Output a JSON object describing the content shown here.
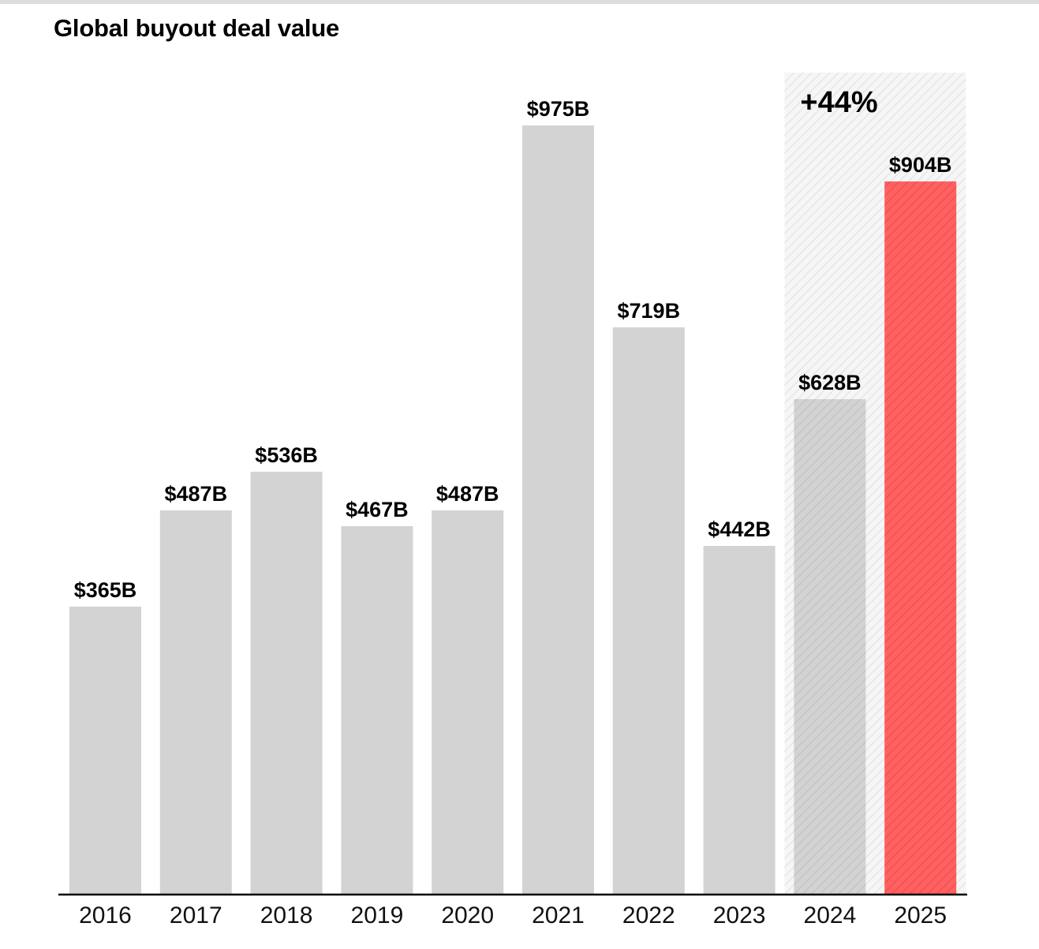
{
  "title": "Global buyout deal value",
  "colors": {
    "bar": "#d3d3d3",
    "bar_hatched": "#cccccc",
    "highlight": "#ff5f5f",
    "axis": "#000000",
    "callout_band": "#f3f3f3"
  },
  "chart_data": {
    "type": "bar",
    "title": "Global buyout deal value",
    "xlabel": "",
    "ylabel": "",
    "ylim": [
      0,
      1000
    ],
    "grid": false,
    "categories": [
      "2016",
      "2017",
      "2018",
      "2019",
      "2020",
      "2021",
      "2022",
      "2023",
      "2024",
      "2025"
    ],
    "values": [
      365,
      487,
      536,
      467,
      487,
      975,
      719,
      442,
      628,
      904
    ],
    "value_labels": [
      "$365B",
      "$487B",
      "$536B",
      "$467B",
      "$487B",
      "$975B",
      "$719B",
      "$442B",
      "$628B",
      "$904B"
    ],
    "hatched_categories": [
      "2024",
      "2025"
    ],
    "highlight_category": "2025",
    "annotation": {
      "text": "+44%",
      "from": "2024",
      "to": "2025"
    }
  }
}
